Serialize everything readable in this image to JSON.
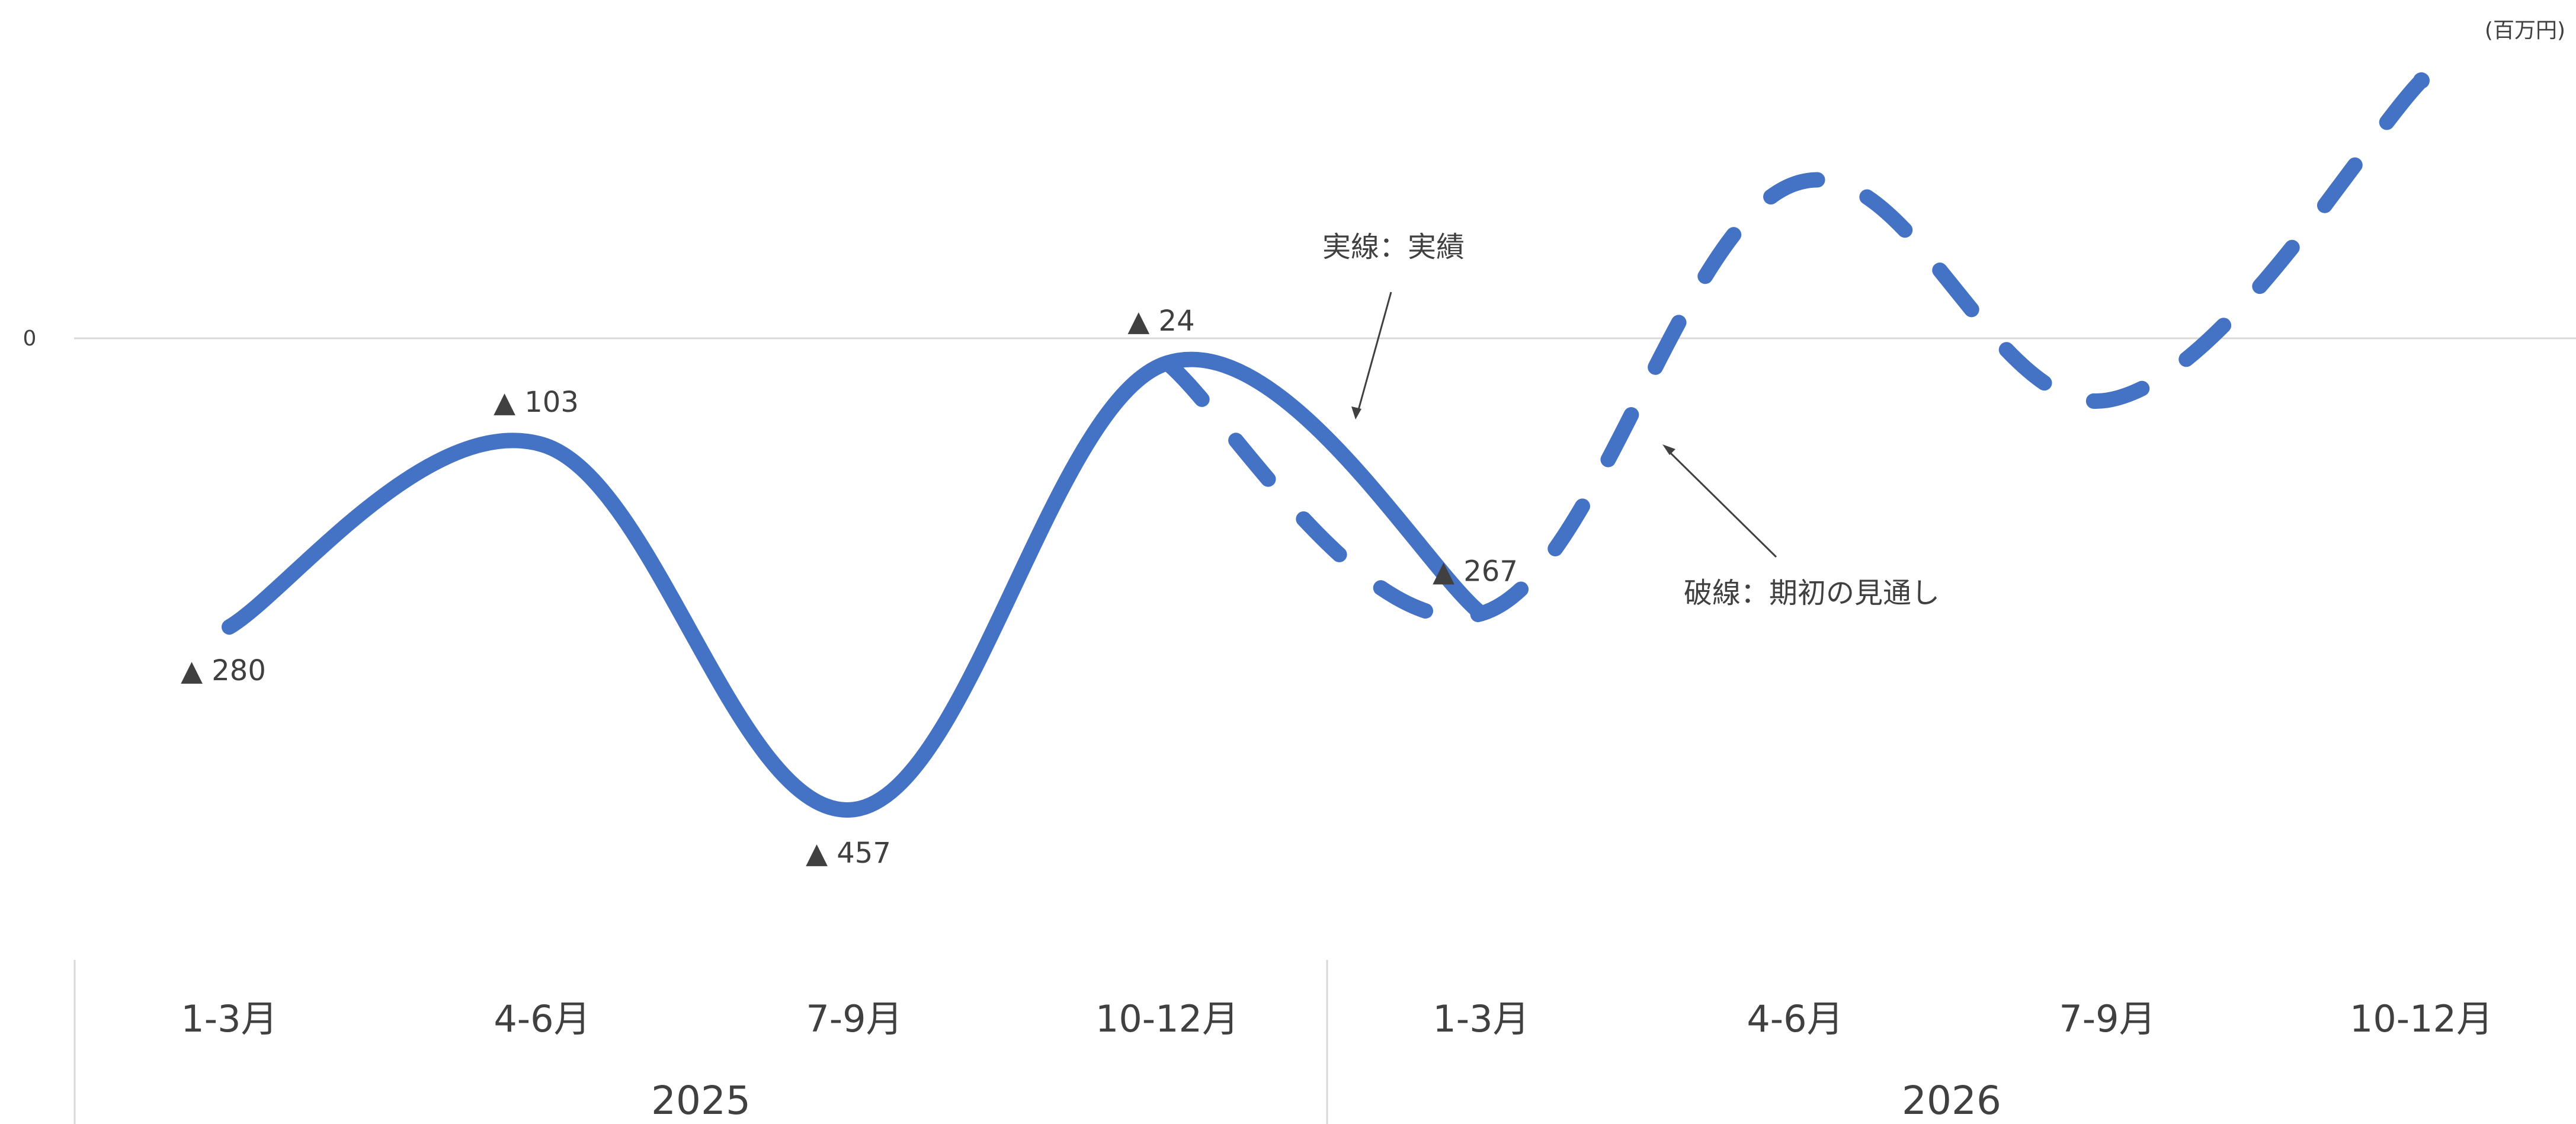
{
  "unit_label": "(百万円)",
  "zero_label": "0",
  "annotations": {
    "actual": "実線：実績",
    "forecast": "破線：期初の見通し"
  },
  "chart_data": {
    "type": "line",
    "categories": [
      "1-3月",
      "4-6月",
      "7-9月",
      "10-12月",
      "1-3月",
      "4-6月",
      "7-9月",
      "10-12月"
    ],
    "groups": [
      {
        "label": "2025",
        "categories": [
          "1-3月",
          "4-6月",
          "7-9月",
          "10-12月"
        ]
      },
      {
        "label": "2026",
        "categories": [
          "1-3月",
          "4-6月",
          "7-9月",
          "10-12月"
        ]
      }
    ],
    "series": [
      {
        "style": "solid",
        "values": [
          -280,
          -103,
          -457,
          -24,
          -267,
          null,
          null,
          null
        ],
        "labels": [
          "▲ 280",
          "▲ 103",
          "▲ 457",
          "▲ 24",
          "▲ 267",
          "",
          "",
          ""
        ]
      },
      {
        "style": "dashed",
        "values": [
          null,
          null,
          null,
          -24,
          -267,
          150,
          -60,
          250
        ]
      }
    ],
    "color": "#4472C4",
    "grid": false
  }
}
